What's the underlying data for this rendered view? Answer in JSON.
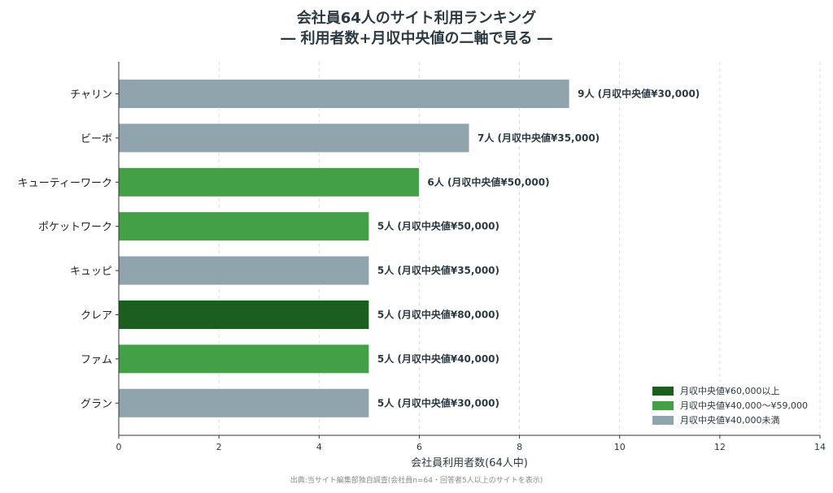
{
  "chart_data": {
    "type": "bar",
    "orientation": "horizontal",
    "title": "会社員64人のサイト利用ランキング",
    "subtitle": "― 利用者数+月収中央値の二軸で見る ―",
    "xlabel": "会社員利用者数(64人中)",
    "ylabel": "",
    "xlim": [
      0,
      14
    ],
    "xticks": [
      "0",
      "2",
      "4",
      "6",
      "8",
      "10",
      "12",
      "14"
    ],
    "grid": "x-dashed",
    "legend_position": "bottom-right",
    "categories": [
      "チャリン",
      "ビーボ",
      "キューティーワーク",
      "ポケットワーク",
      "キュッピ",
      "クレア",
      "ファム",
      "グラン"
    ],
    "values": [
      9,
      7,
      6,
      5,
      5,
      5,
      5,
      5
    ],
    "data_labels": [
      "9人 (月収中央値¥30,000)",
      "7人 (月収中央値¥35,000)",
      "6人 (月収中央値¥50,000)",
      "5人 (月収中央値¥50,000)",
      "5人 (月収中央値¥35,000)",
      "5人 (月収中央値¥80,000)",
      "5人 (月収中央値¥40,000)",
      "5人 (月収中央値¥30,000)"
    ],
    "bar_groups": [
      "low",
      "low",
      "mid",
      "mid",
      "low",
      "high",
      "mid",
      "low"
    ],
    "legend": [
      {
        "key": "high",
        "label": "月収中央値¥60,000以上",
        "color": "#1b5e20"
      },
      {
        "key": "mid",
        "label": "月収中央値¥40,000〜¥59,000",
        "color": "#43a047"
      },
      {
        "key": "low",
        "label": "月収中央値¥40,000未満",
        "color": "#90a4ae"
      }
    ],
    "source": "出典:当サイト編集部独自調査(会社員n=64・回答者5人以上のサイトを表示)"
  }
}
